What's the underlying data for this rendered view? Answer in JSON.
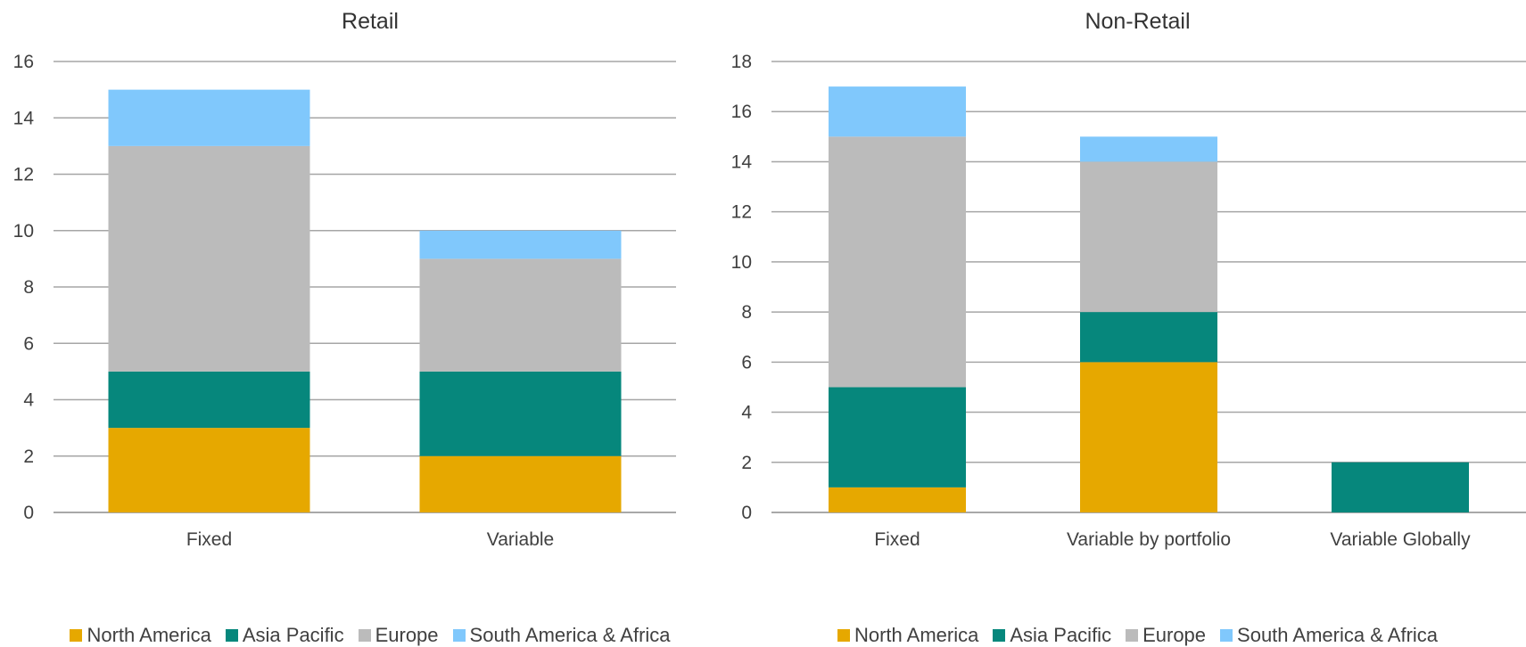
{
  "chart_data": [
    {
      "id": "retail",
      "type": "bar",
      "stacked": true,
      "title": "Retail",
      "xlabel": "",
      "ylabel": "",
      "ylim": [
        0,
        16
      ],
      "yticks": [
        0,
        2,
        4,
        6,
        8,
        10,
        12,
        14,
        16
      ],
      "grid": true,
      "legend_position": "bottom",
      "categories": [
        "Fixed",
        "Variable"
      ],
      "series": [
        {
          "name": "North America",
          "color": "#E6A800",
          "values": [
            3,
            2
          ]
        },
        {
          "name": "Asia Pacific",
          "color": "#06877C",
          "values": [
            2,
            3
          ]
        },
        {
          "name": "Europe",
          "color": "#BBBBBB",
          "values": [
            8,
            4
          ]
        },
        {
          "name": "South America & Africa",
          "color": "#80C8FC",
          "values": [
            2,
            1
          ]
        }
      ]
    },
    {
      "id": "nonretail",
      "type": "bar",
      "stacked": true,
      "title": "Non-Retail",
      "xlabel": "",
      "ylabel": "",
      "ylim": [
        0,
        18
      ],
      "yticks": [
        0,
        2,
        4,
        6,
        8,
        10,
        12,
        14,
        16,
        18
      ],
      "grid": true,
      "legend_position": "bottom",
      "categories": [
        "Fixed",
        "Variable by portfolio",
        "Variable Globally"
      ],
      "series": [
        {
          "name": "North America",
          "color": "#E6A800",
          "values": [
            1,
            6,
            0
          ]
        },
        {
          "name": "Asia Pacific",
          "color": "#06877C",
          "values": [
            4,
            2,
            2
          ]
        },
        {
          "name": "Europe",
          "color": "#BBBBBB",
          "values": [
            10,
            6,
            0
          ]
        },
        {
          "name": "South America & Africa",
          "color": "#80C8FC",
          "values": [
            2,
            1,
            0
          ]
        }
      ]
    }
  ]
}
